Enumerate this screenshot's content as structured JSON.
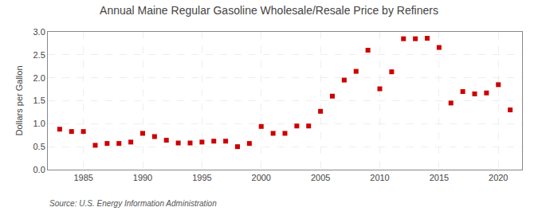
{
  "chart_data": {
    "type": "scatter",
    "title": "Annual Maine Regular Gasoline Wholesale/Resale Price by Refiners",
    "y_label": "Dollars per Gallon",
    "annotation": "Source: U.S. Energy Information Administration",
    "color": "#cc0000",
    "marker": "square",
    "grid": true,
    "xlim": [
      1982,
      2022
    ],
    "ylim": [
      0.0,
      3.0
    ],
    "xticks": [
      1985,
      1990,
      1995,
      2000,
      2005,
      2010,
      2015,
      2020
    ],
    "yticks": [
      {
        "value": 0.0,
        "label": "0.0"
      },
      0.5,
      {
        "value": 1.0,
        "label": "1.0"
      },
      1.5,
      {
        "value": 2.0,
        "label": "2.0"
      },
      2.5,
      {
        "value": 3.0,
        "label": "3.0"
      }
    ],
    "x": [
      1983,
      1984,
      1985,
      1986,
      1987,
      1988,
      1989,
      1990,
      1991,
      1992,
      1993,
      1994,
      1995,
      1996,
      1997,
      1998,
      1999,
      2000,
      2001,
      2002,
      2003,
      2004,
      2005,
      2006,
      2007,
      2008,
      2009,
      2010,
      2011,
      2012,
      2013,
      2014,
      2015,
      2016,
      2017,
      2018,
      2019,
      2020,
      2021
    ],
    "values": [
      0.88,
      0.83,
      0.83,
      0.53,
      0.57,
      0.57,
      0.6,
      0.79,
      0.72,
      0.64,
      0.58,
      0.58,
      0.6,
      0.62,
      0.62,
      0.5,
      0.57,
      0.94,
      0.79,
      0.79,
      0.95,
      0.95,
      1.27,
      1.6,
      1.95,
      2.14,
      2.6,
      1.76,
      2.13,
      2.85,
      2.85,
      2.86,
      2.66,
      1.45,
      1.7,
      1.65,
      1.67,
      1.85,
      1.3
    ]
  }
}
